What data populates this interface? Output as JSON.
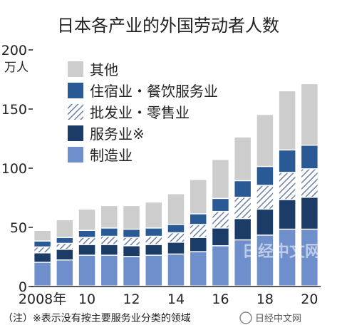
{
  "chart_data": {
    "type": "bar",
    "stacked": true,
    "title": "日本各产业的外国劳动者人数",
    "unit": "万人",
    "x": [
      2008,
      2009,
      2010,
      2011,
      2012,
      2013,
      2014,
      2015,
      2016,
      2017,
      2018,
      2019,
      2020
    ],
    "x_tick_labels": [
      {
        "x": 2008,
        "label": "2008年"
      },
      {
        "x": 2010,
        "label": "10"
      },
      {
        "x": 2012,
        "label": "12"
      },
      {
        "x": 2014,
        "label": "14"
      },
      {
        "x": 2016,
        "label": "16"
      },
      {
        "x": 2018,
        "label": "18"
      },
      {
        "x": 2020,
        "label": "20"
      }
    ],
    "y_ticks": [
      0,
      50,
      100,
      150,
      200
    ],
    "ylim": [
      0,
      200
    ],
    "grid": false,
    "legend_position": "top-left",
    "series": [
      {
        "name": "制造业",
        "pattern": "solid",
        "color": "#6e8fcb",
        "values": [
          20,
          22,
          26,
          26,
          25,
          26,
          27,
          29,
          34,
          39,
          43,
          48,
          48
        ]
      },
      {
        "name": "服务业※",
        "pattern": "solid",
        "color": "#1b3c66",
        "values": [
          8,
          9,
          9,
          9,
          9,
          9,
          10,
          12,
          15,
          18,
          22,
          25,
          27
        ]
      },
      {
        "name": "批发业・零售业",
        "pattern": "hatch",
        "color": "#6b7fa6",
        "values": [
          5,
          5,
          6,
          7,
          7,
          7,
          8,
          11,
          14,
          18,
          20,
          23,
          24
        ]
      },
      {
        "name": "住宿业・餐饮服务业",
        "pattern": "solid",
        "color": "#2a5a96",
        "values": [
          5,
          5,
          6,
          7,
          7,
          7,
          7,
          9,
          11,
          14,
          16,
          19,
          20
        ]
      },
      {
        "name": "其他",
        "pattern": "solid",
        "color": "#cdcdcd",
        "values": [
          9,
          15,
          18,
          19,
          20,
          22,
          26,
          29,
          33,
          37,
          44,
          50,
          52
        ]
      }
    ],
    "legend_order": [
      "其他",
      "住宿业・餐饮服务业",
      "批发业・零售业",
      "服务业※",
      "制造业"
    ]
  },
  "note": "（注）※表示没有按主要服务业分类的领域",
  "watermark": "日经中文网",
  "watermark_channel": "日经中文网"
}
